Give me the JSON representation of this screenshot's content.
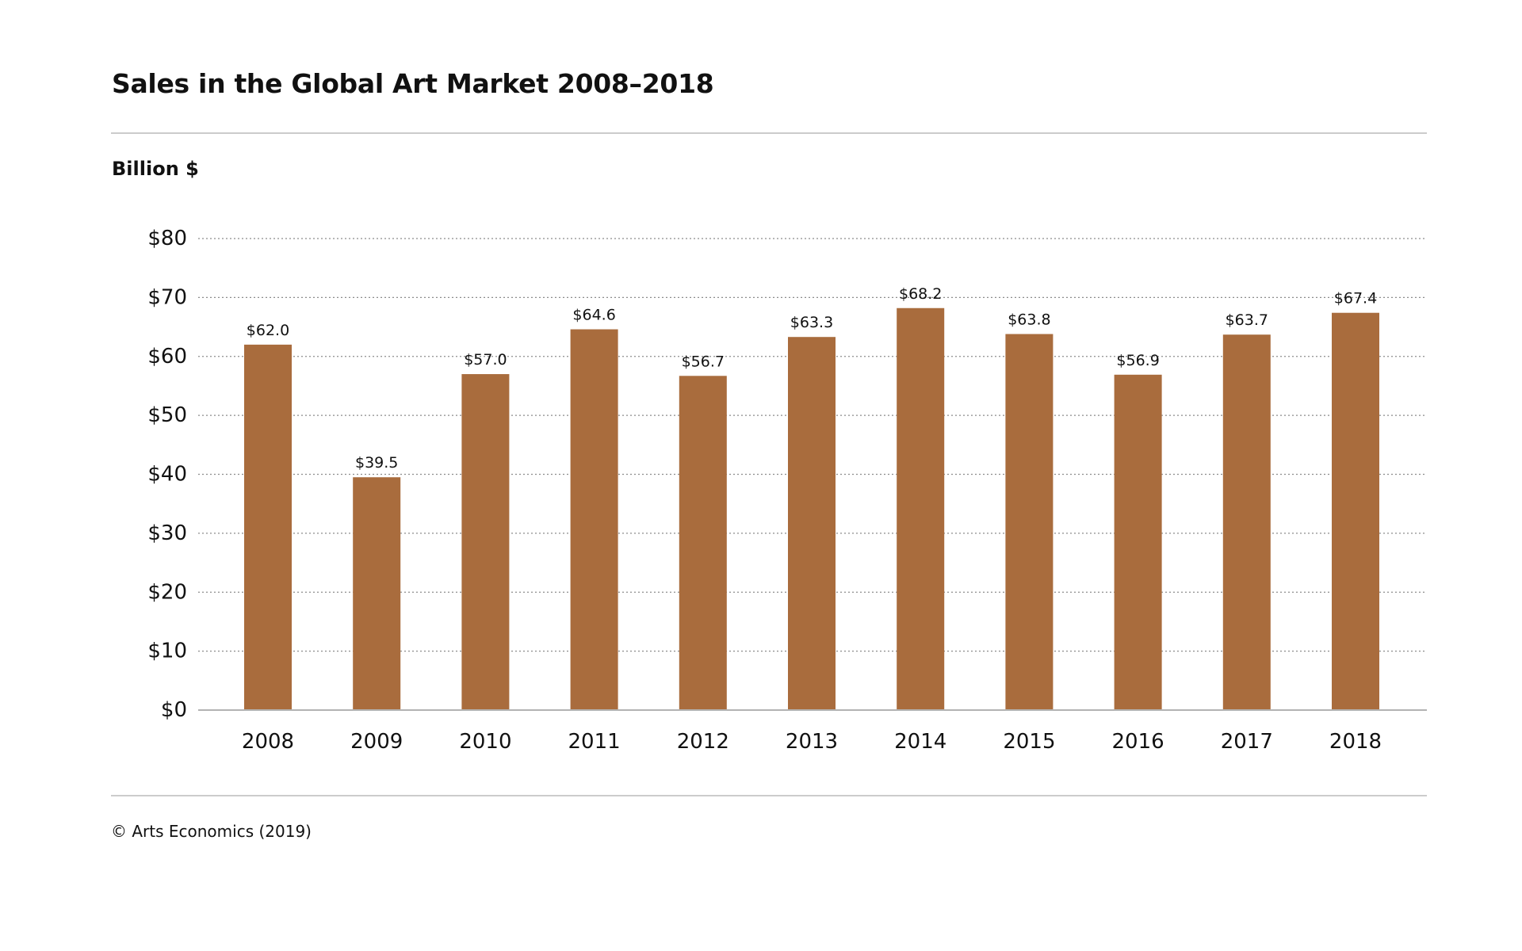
{
  "title": "Sales in the Global Art Market 2008–2018",
  "unit_label": "Billion $",
  "footer": "© Arts Economics (2019)",
  "colors": {
    "bar": "#a96c3d",
    "grid": "#8c8c8c",
    "axis": "#b3b3b3",
    "rule": "#cccccc",
    "text": "#111111"
  },
  "chart_data": {
    "type": "bar",
    "title": "Sales in the Global Art Market 2008–2018",
    "xlabel": "",
    "ylabel": "Billion $",
    "categories": [
      "2008",
      "2009",
      "2010",
      "2011",
      "2012",
      "2013",
      "2014",
      "2015",
      "2016",
      "2017",
      "2018"
    ],
    "values": [
      62.0,
      39.5,
      57.0,
      64.6,
      56.7,
      63.3,
      68.2,
      63.8,
      56.9,
      63.7,
      67.4
    ],
    "value_labels": [
      "$62.0",
      "$39.5",
      "$57.0",
      "$64.6",
      "$56.7",
      "$63.3",
      "$68.2",
      "$63.8",
      "$56.9",
      "$63.7",
      "$67.4"
    ],
    "ylim": [
      0,
      80
    ],
    "yticks": [
      0,
      10,
      20,
      30,
      40,
      50,
      60,
      70,
      80
    ],
    "ytick_labels": [
      "$0",
      "$10",
      "$20",
      "$30",
      "$40",
      "$50",
      "$60",
      "$70",
      "$80"
    ],
    "grid": "horizontal dotted",
    "legend": "none"
  }
}
